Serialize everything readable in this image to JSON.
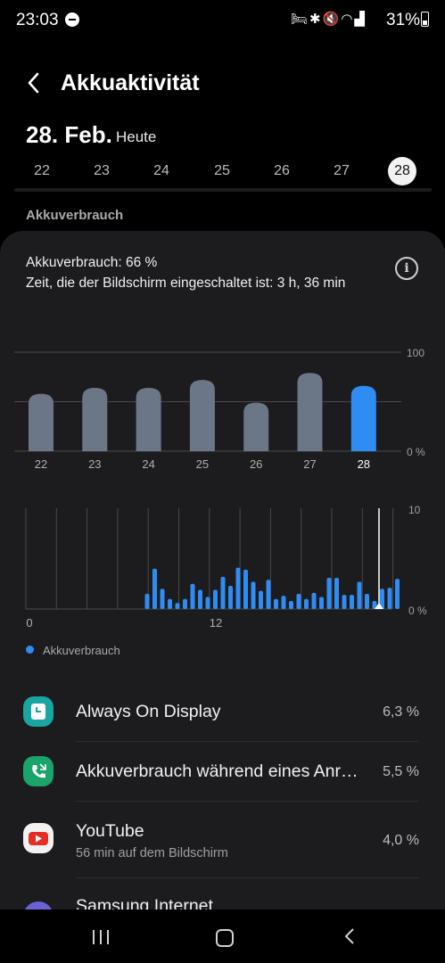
{
  "status_bar": {
    "time": "23:03",
    "battery": "31%",
    "icons": [
      "dnd-icon",
      "sleep-mode-icon",
      "bluetooth-icon",
      "mute-icon",
      "wifi-icon",
      "signal-icon",
      "battery-icon"
    ]
  },
  "header": {
    "title": "Akkuaktivität"
  },
  "date": {
    "main": "28. Feb.",
    "sub": "Heute"
  },
  "days": [
    "22",
    "23",
    "24",
    "25",
    "26",
    "27",
    "28"
  ],
  "selected_day": "28",
  "section_label": "Akkuverbrauch",
  "summary": {
    "usage": "Akkuverbrauch: 66 %",
    "screen_time": "Zeit, die der Bildschirm eingeschaltet ist: 3 h, 36 min"
  },
  "chart_data": [
    {
      "type": "bar",
      "categories": [
        "22",
        "23",
        "24",
        "25",
        "26",
        "27",
        "28"
      ],
      "values": [
        58,
        64,
        64,
        72,
        49,
        79,
        66
      ],
      "ylim": [
        0,
        100
      ],
      "y_ticks": [
        "100",
        "0 %"
      ],
      "highlight": "28",
      "colors": {
        "bar": "#6b7687",
        "highlight": "#2f8cf2"
      }
    },
    {
      "type": "bar",
      "x_ticks": [
        "0",
        "12"
      ],
      "y_ticks": [
        "10",
        "0 %"
      ],
      "ylim": [
        0,
        10
      ],
      "values": [
        0,
        0,
        0,
        0,
        0,
        0,
        0,
        0,
        0,
        0,
        0,
        0,
        0,
        0,
        0,
        0,
        1.5,
        4.0,
        2.0,
        1.0,
        0.6,
        1.0,
        2.5,
        1.9,
        1.2,
        1.9,
        3.2,
        2.3,
        4.1,
        3.9,
        2.7,
        1.8,
        2.9,
        1.0,
        1.3,
        0.8,
        1.5,
        1.0,
        1.6,
        1.2,
        3.1,
        3.1,
        1.4,
        1.4,
        2.7,
        1.5,
        0.8,
        2.0,
        2.1,
        3.0
      ],
      "legend": [
        "Akkuverbrauch"
      ],
      "colors": {
        "bar": "#2f8cf2"
      }
    }
  ],
  "apps": [
    {
      "name": "Always On Display",
      "pct": "6,3 %",
      "sub": ""
    },
    {
      "name": "Akkuverbrauch während eines Anr…",
      "pct": "5,5 %",
      "sub": ""
    },
    {
      "name": "YouTube",
      "pct": "4,0 %",
      "sub": "56 min auf dem Bildschirm"
    },
    {
      "name": "Samsung Internet",
      "pct": "",
      "sub": ""
    }
  ],
  "colors": {
    "accent": "#2f8cf2",
    "card": "#1c1c1e",
    "background": "#000000"
  }
}
